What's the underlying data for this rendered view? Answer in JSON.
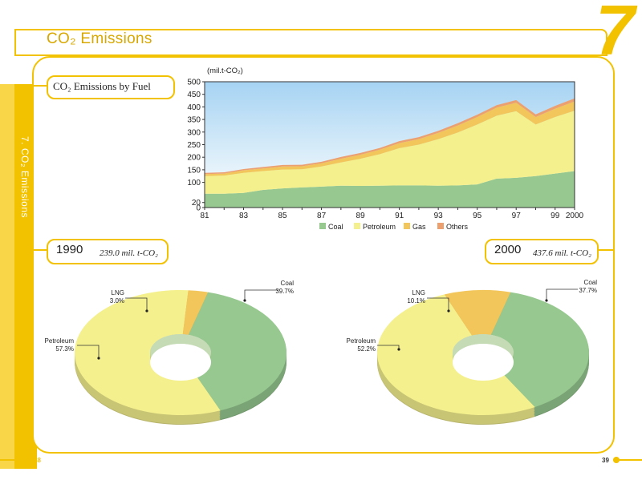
{
  "header": {
    "title": "CO₂ Emissions",
    "chapter_number": "7"
  },
  "side_label": "7. CO₂ Emissions",
  "fuel_section": {
    "title": "CO₂ Emissions by Fuel"
  },
  "year_1990": {
    "label": "1990",
    "total": "239.0 mil. t-CO₂"
  },
  "year_2000": {
    "label": "2000",
    "total": "437.6 mil. t-CO₂"
  },
  "page_numbers": {
    "left": "38",
    "right": "39"
  },
  "colors": {
    "coal": "#96c890",
    "petroleum": "#f4f08e",
    "gas": "#f2c65a",
    "others": "#eca070",
    "accent": "#f2c200",
    "sky_top": "#a6d3f3"
  },
  "chart_data": [
    {
      "type": "area",
      "unit_label": "(mil.t-CO₂)",
      "x": [
        81,
        82,
        83,
        84,
        85,
        86,
        87,
        88,
        89,
        90,
        91,
        92,
        93,
        94,
        95,
        96,
        97,
        98,
        99,
        100
      ],
      "xtick_labels": [
        "81",
        "83",
        "85",
        "87",
        "89",
        "91",
        "93",
        "95",
        "97",
        "99",
        "2000"
      ],
      "yticks": [
        0,
        20,
        100,
        150,
        200,
        250,
        300,
        350,
        400,
        450,
        500
      ],
      "ylim": [
        0,
        500
      ],
      "stacked": true,
      "series": [
        {
          "name": "Coal",
          "values": [
            55,
            55,
            58,
            70,
            76,
            80,
            83,
            87,
            86,
            87,
            88,
            88,
            87,
            88,
            92,
            115,
            118,
            125,
            135,
            145
          ]
        },
        {
          "name": "Petroleum",
          "values": [
            70,
            72,
            80,
            75,
            75,
            72,
            80,
            92,
            108,
            125,
            148,
            162,
            185,
            210,
            238,
            250,
            265,
            205,
            225,
            240
          ]
        },
        {
          "name": "Gas",
          "values": [
            8,
            8,
            10,
            10,
            12,
            12,
            13,
            15,
            16,
            18,
            20,
            22,
            25,
            28,
            30,
            32,
            34,
            30,
            33,
            37
          ]
        },
        {
          "name": "Others",
          "values": [
            5,
            5,
            5,
            6,
            6,
            6,
            6,
            7,
            7,
            7,
            8,
            8,
            8,
            9,
            9,
            10,
            10,
            10,
            11,
            12
          ]
        }
      ],
      "legend_position": "bottom"
    },
    {
      "type": "pie",
      "year": "1990",
      "slices": [
        {
          "name": "Coal",
          "value": 39.7,
          "label": "Coal",
          "pct": "39.7%"
        },
        {
          "name": "Petroleum",
          "value": 57.3,
          "label": "Petroleum",
          "pct": "57.3%"
        },
        {
          "name": "LNG",
          "value": 3.0,
          "label": "LNG",
          "pct": "3.0%"
        }
      ]
    },
    {
      "type": "pie",
      "year": "2000",
      "slices": [
        {
          "name": "Coal",
          "value": 37.7,
          "label": "Coal",
          "pct": "37.7%"
        },
        {
          "name": "Petroleum",
          "value": 52.2,
          "label": "Petroleum",
          "pct": "52.2%"
        },
        {
          "name": "LNG",
          "value": 10.1,
          "label": "LNG",
          "pct": "10.1%"
        }
      ]
    }
  ]
}
